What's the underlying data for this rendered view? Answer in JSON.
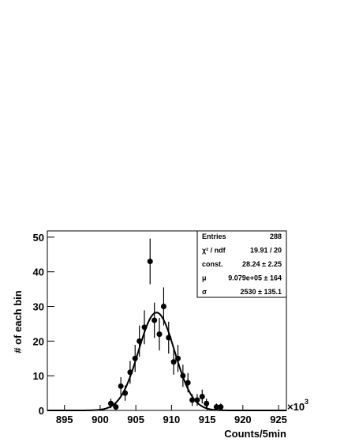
{
  "chart_data": {
    "type": "errorbar",
    "x_label": "Counts/5min",
    "y_label": "# of each bin",
    "x_multiplier": {
      "base": "×10",
      "exponent": "3"
    },
    "x": [
      901.5,
      902.2,
      902.9,
      903.5,
      904.2,
      904.9,
      905.5,
      906.2,
      907.0,
      907.6,
      908.3,
      908.9,
      909.6,
      910.3,
      910.9,
      911.6,
      912.3,
      912.9,
      913.6,
      914.3,
      914.9,
      916.3,
      916.9
    ],
    "values": [
      2,
      1,
      7,
      5,
      11,
      15,
      20,
      24,
      43,
      26,
      22,
      30,
      21,
      14,
      15,
      10,
      8,
      3,
      3,
      4,
      2,
      1,
      1
    ],
    "errors": [
      1.4,
      1,
      2.6,
      2.2,
      3.3,
      3.9,
      4.5,
      4.9,
      6.6,
      5.1,
      4.7,
      5.5,
      4.6,
      3.7,
      3.9,
      3.2,
      2.8,
      1.7,
      1.7,
      2,
      1.4,
      1,
      1
    ],
    "color": "#000000",
    "fit": {
      "constant": 28.24,
      "mean": 907.9,
      "sigma": 2.53
    },
    "xlim": [
      892.6,
      926.1
    ],
    "ylim": [
      0,
      51.8
    ],
    "xticks": [
      895,
      900,
      905,
      910,
      915,
      920,
      925
    ],
    "yticks": [
      0,
      10,
      20,
      30,
      40,
      50
    ],
    "stats": [
      {
        "label": "Entries",
        "value": "288"
      },
      {
        "label": "χ² / ndf",
        "value": "19.91 / 20"
      },
      {
        "label": "const.",
        "value": "28.24 ± 2.25"
      },
      {
        "label": "μ",
        "value": "9.079e+05 ± 164"
      },
      {
        "label": "σ",
        "value": "2530 ± 135.1"
      }
    ]
  }
}
